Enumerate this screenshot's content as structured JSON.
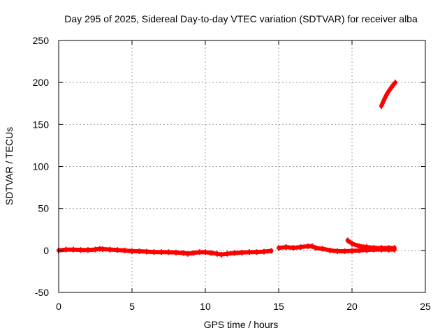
{
  "chart_data": {
    "type": "line",
    "title": "Day 295 of 2025, Sidereal Day-to-day VTEC variation (SDTVAR) for receiver alba",
    "xlabel": "GPS time / hours",
    "ylabel": "SDTVAR / TECUs",
    "xlim": [
      0,
      25
    ],
    "ylim": [
      -50,
      250
    ],
    "xticks": [
      0,
      5,
      10,
      15,
      20,
      25
    ],
    "yticks": [
      -50,
      0,
      50,
      100,
      150,
      200,
      250
    ],
    "xtick_labels": [
      "0",
      "5",
      "10",
      "15",
      "20",
      "25"
    ],
    "ytick_labels": [
      "-50",
      "0",
      "50",
      "100",
      "150",
      "200",
      "250"
    ],
    "grid": true,
    "series": [
      {
        "name": "trace-a",
        "color": "#ff0000",
        "x": [
          0,
          0.5,
          1,
          1.5,
          2,
          2.5,
          2.8,
          3,
          3.5,
          4,
          4.5,
          5,
          5.5,
          6,
          6.5,
          7,
          7.5,
          8,
          8.5,
          8.8,
          9.2,
          9.6,
          10,
          10.4,
          10.8,
          11.1,
          11.5,
          12,
          12.5,
          13,
          13.5,
          14,
          14.5
        ],
        "values": [
          0,
          1,
          1,
          0.5,
          0.5,
          1,
          2,
          1.5,
          1,
          0.5,
          0,
          -1,
          -1,
          -1.5,
          -2,
          -2,
          -2,
          -2.5,
          -3,
          -4,
          -3,
          -2,
          -2,
          -3,
          -4,
          -5,
          -4,
          -3,
          -2.5,
          -2,
          -2,
          -1.5,
          -0.5
        ]
      },
      {
        "name": "trace-b",
        "color": "#ff0000",
        "x": [
          15,
          15.5,
          16,
          16.5,
          17,
          17.3,
          17.5,
          18,
          18.5,
          19,
          19.5,
          20,
          20.5,
          21,
          21.5,
          22,
          22.5,
          22.9
        ],
        "values": [
          3,
          4,
          3,
          4,
          5,
          5,
          3,
          2,
          0,
          -1,
          -1,
          -0.5,
          0,
          0.5,
          1,
          1,
          1,
          1
        ]
      },
      {
        "name": "trace-c",
        "color": "#ff0000",
        "x": [
          19.7,
          20,
          20.5,
          21,
          21.5,
          22,
          22.5,
          22.9
        ],
        "values": [
          12,
          8,
          5,
          4,
          3,
          3,
          3,
          3
        ]
      },
      {
        "name": "trace-d",
        "color": "#ff0000",
        "x": [
          22.0,
          22.2,
          22.4,
          22.6,
          22.8,
          22.95
        ],
        "values": [
          172,
          180,
          187,
          192,
          197,
          200
        ]
      }
    ]
  }
}
